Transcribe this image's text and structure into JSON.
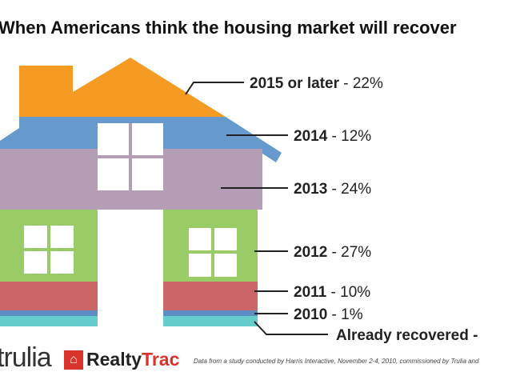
{
  "chart_data": {
    "type": "bar",
    "title": "When Americans think the housing market will recover",
    "categories": [
      "2015 or later",
      "2014",
      "2013",
      "2012",
      "2011",
      "2010",
      "Already recovered"
    ],
    "values": [
      22,
      12,
      24,
      27,
      10,
      1,
      null
    ],
    "value_labels": [
      "22%",
      "12%",
      "24%",
      "27%",
      "10%",
      "1%",
      ""
    ],
    "colors": [
      "#f59a23",
      "#6699cc",
      "#b39eb5",
      "#99cc66",
      "#cc6666",
      "#5b8fc4",
      "#66cccc"
    ]
  },
  "footer": {
    "logo1": "trulia",
    "logo2a": "Realty",
    "logo2b": "Trac",
    "note": "Data from a study conducted by Harris Interactive, November 2-4, 2010, commissioned by Trulia and"
  }
}
